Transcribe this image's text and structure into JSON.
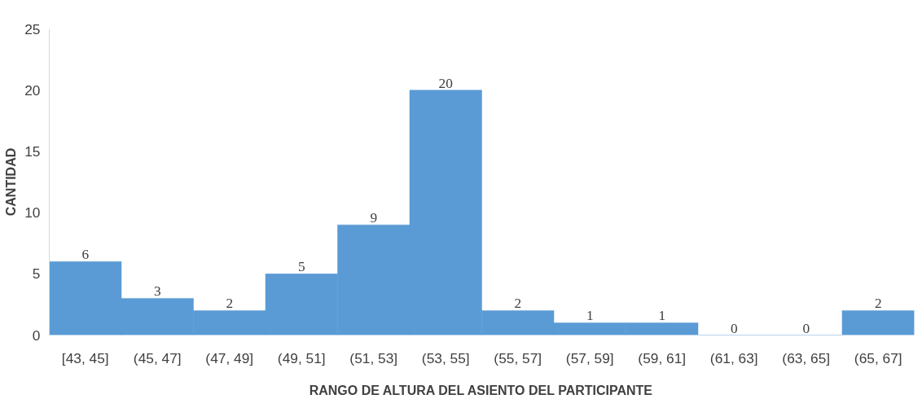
{
  "chart_data": {
    "type": "bar",
    "xlabel": "RANGO DE ALTURA DEL ASIENTO DEL PARTICIPANTE",
    "ylabel": "CANTIDAD",
    "categories": [
      "[43, 45]",
      "(45, 47]",
      "(47, 49]",
      "(49, 51]",
      "(51, 53]",
      "(53, 55]",
      "(55, 57]",
      "(57, 59]",
      "(59, 61]",
      "(61, 63]",
      "(63, 65]",
      "(65, 67]"
    ],
    "values": [
      6,
      3,
      2,
      5,
      9,
      20,
      2,
      1,
      1,
      0,
      0,
      2
    ],
    "color": "#5b9bd5",
    "ylim": [
      0,
      25
    ],
    "yticks": [
      0,
      5,
      10,
      15,
      20,
      25
    ],
    "grid": false,
    "data_labels": true
  }
}
